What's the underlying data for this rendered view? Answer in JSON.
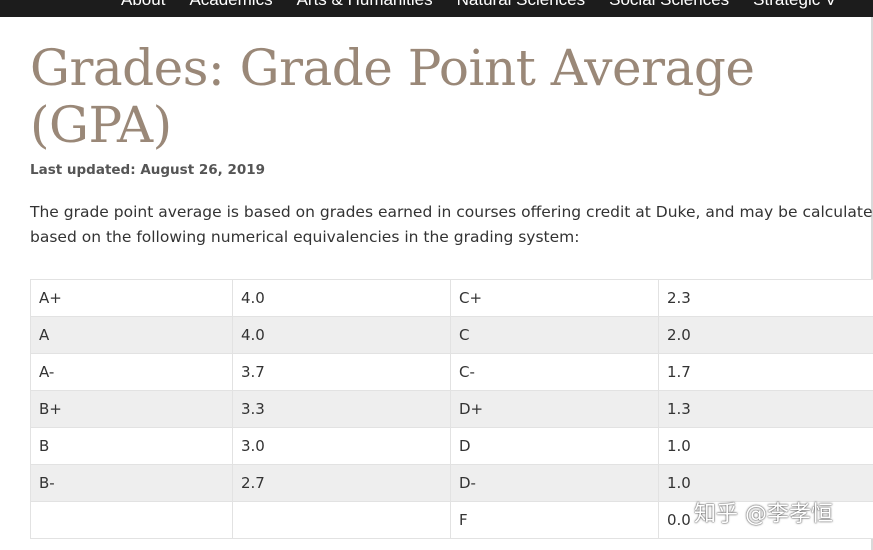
{
  "nav": {
    "items": [
      "About",
      "Academics",
      "Arts & Humanities",
      "Natural Sciences",
      "Social Sciences",
      "Strategic V"
    ]
  },
  "page": {
    "title": "Grades: Grade Point Average (GPA)",
    "last_updated": "Last updated: August 26, 2019",
    "intro": [
      "The grade point average is based on grades earned in courses offering credit at Duke, and may be calculated",
      "based on the following numerical equivalencies in the grading system:"
    ]
  },
  "grades_table": {
    "rows": [
      [
        "A+",
        "4.0",
        "C+",
        "2.3"
      ],
      [
        "A",
        "4.0",
        "C",
        "2.0"
      ],
      [
        "A-",
        "3.7",
        "C-",
        "1.7"
      ],
      [
        "B+",
        "3.3",
        "D+",
        "1.3"
      ],
      [
        "B",
        "3.0",
        "D",
        "1.0"
      ],
      [
        "B-",
        "2.7",
        "D-",
        "1.0"
      ],
      [
        "",
        "",
        "F",
        "0.0"
      ]
    ]
  },
  "watermark": "知乎 @李孝恒"
}
